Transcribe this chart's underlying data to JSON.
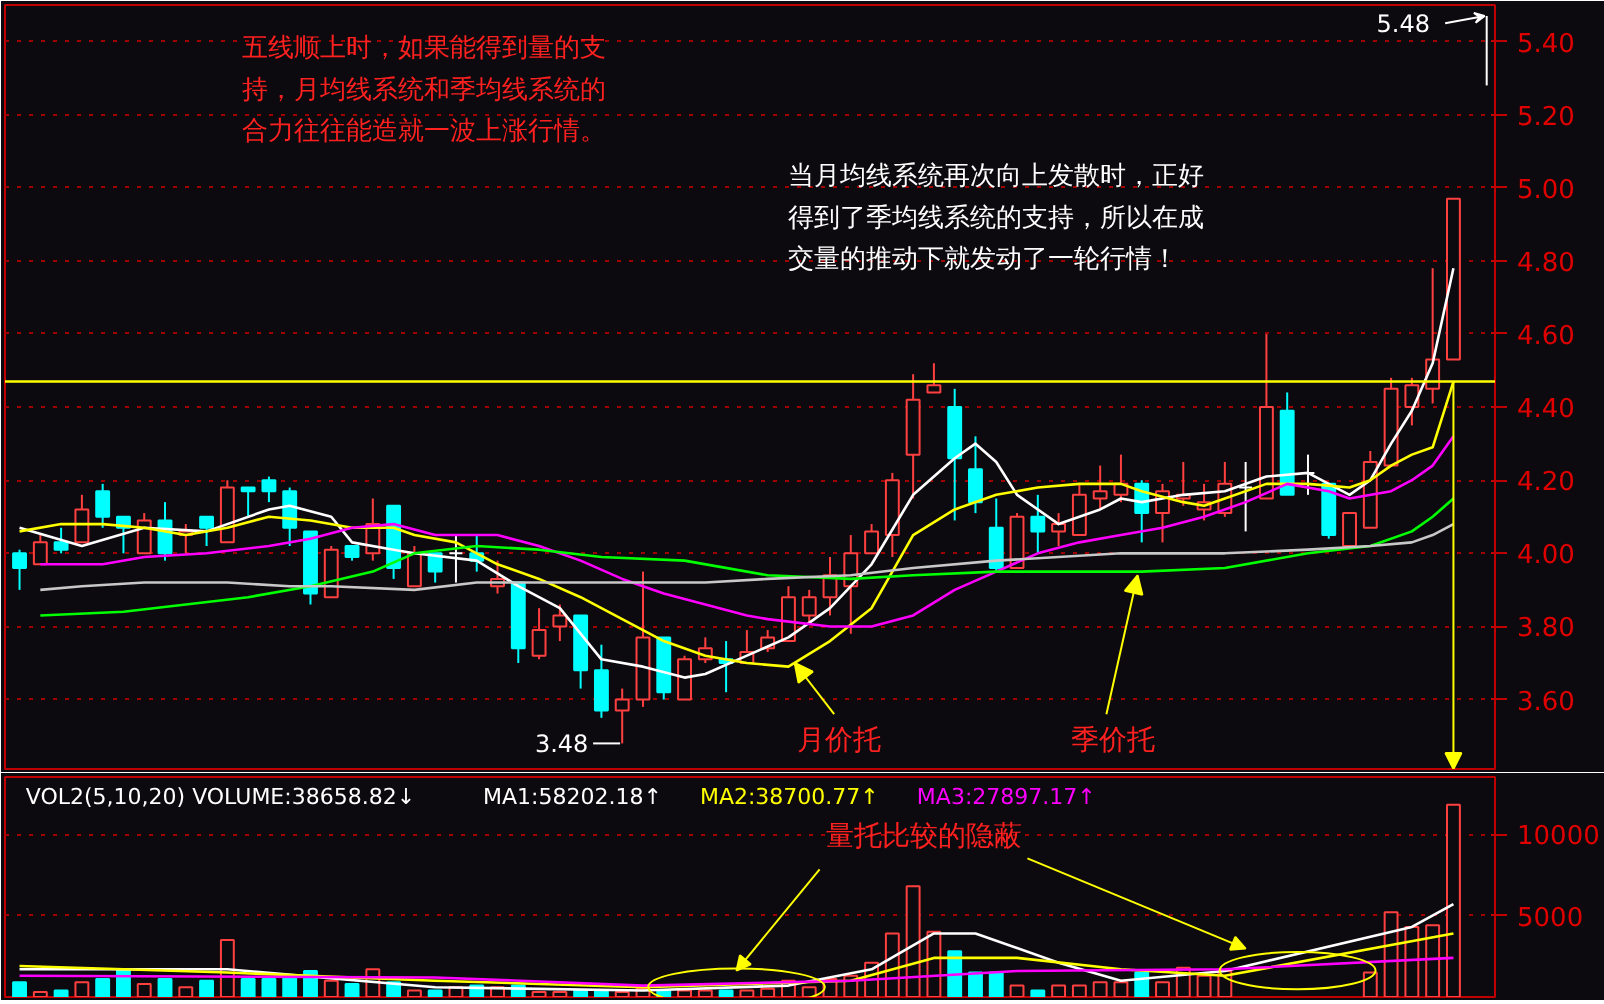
{
  "chart_data": [
    {
      "type": "candlestick",
      "categories": [
        null,
        null,
        null,
        null,
        null,
        null,
        null,
        null,
        null,
        null,
        null,
        null,
        null,
        null,
        null,
        null,
        null,
        null,
        null,
        null,
        null,
        null,
        null,
        null,
        null,
        null,
        null,
        null,
        null,
        null,
        null,
        null,
        null,
        null,
        null,
        null,
        null,
        null,
        null,
        null,
        null,
        null,
        null,
        null,
        null,
        null,
        null,
        null,
        null,
        null,
        null,
        null,
        null,
        null,
        null,
        null,
        null,
        null,
        null,
        null,
        null,
        null,
        null,
        null,
        null,
        null,
        null,
        null,
        null,
        null
      ],
      "ohlc": [
        [
          4.0,
          4.01,
          3.9,
          3.96
        ],
        [
          3.97,
          4.05,
          3.97,
          4.03
        ],
        [
          4.03,
          4.07,
          4.0,
          4.01
        ],
        [
          4.03,
          4.16,
          4.03,
          4.12
        ],
        [
          4.17,
          4.19,
          4.07,
          4.1
        ],
        [
          4.1,
          4.1,
          4.0,
          4.07
        ],
        [
          4.0,
          4.11,
          4.0,
          4.09
        ],
        [
          4.09,
          4.14,
          3.98,
          4.0
        ],
        [
          4.05,
          4.08,
          4.0,
          4.06
        ],
        [
          4.1,
          4.1,
          4.02,
          4.07
        ],
        [
          4.03,
          4.2,
          4.03,
          4.18
        ],
        [
          4.18,
          4.18,
          4.1,
          4.17
        ],
        [
          4.2,
          4.21,
          4.14,
          4.17
        ],
        [
          4.17,
          4.18,
          4.02,
          4.07
        ],
        [
          4.06,
          4.06,
          3.86,
          3.89
        ],
        [
          3.88,
          4.02,
          3.88,
          4.01
        ],
        [
          4.02,
          4.02,
          3.98,
          3.99
        ],
        [
          4.0,
          4.15,
          3.98,
          4.08
        ],
        [
          4.13,
          4.13,
          3.93,
          3.96
        ],
        [
          3.91,
          4.02,
          3.91,
          4.0
        ],
        [
          4.0,
          4.0,
          3.92,
          3.95
        ],
        [
          4.0,
          4.05,
          3.92,
          4.0
        ],
        [
          4.0,
          4.05,
          3.95,
          3.98
        ],
        [
          3.91,
          3.98,
          3.89,
          3.93
        ],
        [
          3.92,
          3.92,
          3.7,
          3.74
        ],
        [
          3.72,
          3.85,
          3.71,
          3.79
        ],
        [
          3.8,
          3.86,
          3.76,
          3.83
        ],
        [
          3.83,
          3.83,
          3.63,
          3.68
        ],
        [
          3.68,
          3.75,
          3.55,
          3.57
        ],
        [
          3.57,
          3.63,
          3.48,
          3.6
        ],
        [
          3.6,
          3.95,
          3.58,
          3.77
        ],
        [
          3.77,
          3.77,
          3.6,
          3.62
        ],
        [
          3.6,
          3.72,
          3.6,
          3.71
        ],
        [
          3.71,
          3.77,
          3.7,
          3.74
        ],
        [
          3.71,
          3.76,
          3.62,
          3.7
        ],
        [
          3.7,
          3.79,
          3.7,
          3.73
        ],
        [
          3.74,
          3.79,
          3.73,
          3.77
        ],
        [
          3.76,
          3.91,
          3.76,
          3.88
        ],
        [
          3.83,
          3.9,
          3.81,
          3.88
        ],
        [
          3.88,
          3.99,
          3.83,
          3.94
        ],
        [
          3.91,
          4.05,
          3.78,
          4.0
        ],
        [
          4.0,
          4.08,
          4.0,
          4.06
        ],
        [
          4.05,
          4.22,
          3.99,
          4.2
        ],
        [
          4.27,
          4.49,
          4.15,
          4.42
        ],
        [
          4.44,
          4.52,
          4.44,
          4.46
        ],
        [
          4.4,
          4.45,
          4.09,
          4.26
        ],
        [
          4.23,
          4.32,
          4.11,
          4.14
        ],
        [
          4.07,
          4.15,
          3.95,
          3.96
        ],
        [
          3.96,
          4.11,
          3.96,
          4.1
        ],
        [
          4.1,
          4.16,
          4.0,
          4.06
        ],
        [
          4.06,
          4.11,
          4.02,
          4.08
        ],
        [
          4.05,
          4.19,
          4.05,
          4.16
        ],
        [
          4.15,
          4.24,
          4.12,
          4.17
        ],
        [
          4.16,
          4.27,
          4.14,
          4.19
        ],
        [
          4.19,
          4.2,
          4.03,
          4.11
        ],
        [
          4.11,
          4.19,
          4.03,
          4.17
        ],
        [
          4.15,
          4.25,
          4.13,
          4.16
        ],
        [
          4.12,
          4.19,
          4.09,
          4.14
        ],
        [
          4.11,
          4.25,
          4.1,
          4.19
        ],
        [
          4.18,
          4.25,
          4.06,
          4.18
        ],
        [
          4.15,
          4.6,
          4.15,
          4.4
        ],
        [
          4.39,
          4.44,
          4.16,
          4.16
        ],
        [
          4.22,
          4.27,
          4.16,
          4.22
        ],
        [
          4.19,
          4.19,
          4.04,
          4.05
        ],
        [
          4.02,
          4.11,
          4.02,
          4.11
        ],
        [
          4.07,
          4.28,
          4.07,
          4.25
        ],
        [
          4.24,
          4.48,
          4.24,
          4.45
        ],
        [
          4.4,
          4.48,
          4.35,
          4.46
        ],
        [
          4.45,
          4.78,
          4.41,
          4.53
        ],
        [
          4.53,
          4.97,
          4.53,
          4.97
        ]
      ],
      "colors": [
        "#00ffff",
        "#ff4040",
        "#00ffff",
        "#ff4040",
        "#00ffff",
        "#00ffff",
        "#ff4040",
        "#00ffff",
        "#ff4040",
        "#00ffff",
        "#ff4040",
        "#00ffff",
        "#00ffff",
        "#00ffff",
        "#00ffff",
        "#ff4040",
        "#00ffff",
        "#ff4040",
        "#00ffff",
        "#ff4040",
        "#00ffff",
        "#ffffff",
        "#00ffff",
        "#ff4040",
        "#00ffff",
        "#ff4040",
        "#ff4040",
        "#00ffff",
        "#00ffff",
        "#ff4040",
        "#ff4040",
        "#00ffff",
        "#ff4040",
        "#ff4040",
        "#00ffff",
        "#ff4040",
        "#ff4040",
        "#ff4040",
        "#ff4040",
        "#ff4040",
        "#ff4040",
        "#ff4040",
        "#ff4040",
        "#ff4040",
        "#ff4040",
        "#00ffff",
        "#00ffff",
        "#00ffff",
        "#ff4040",
        "#00ffff",
        "#ff4040",
        "#ff4040",
        "#ff4040",
        "#ff4040",
        "#00ffff",
        "#ff4040",
        "#ff4040",
        "#ff4040",
        "#ff4040",
        "#ffffff",
        "#ff4040",
        "#00ffff",
        "#ffffff",
        "#00ffff",
        "#ff4040",
        "#ff4040",
        "#ff4040",
        "#ff4040",
        "#ff4040",
        "#ff4040"
      ],
      "series": [
        {
          "type": "line",
          "color": "#ffffff",
          "values": [
            4.07,
            null,
            null,
            4.02,
            null,
            null,
            4.07,
            null,
            null,
            4.06,
            null,
            null,
            4.12,
            4.13,
            null,
            4.1,
            4.03,
            null,
            4.01,
            4.0,
            null,
            null,
            3.98,
            null,
            3.91,
            null,
            3.85,
            null,
            3.71,
            null,
            3.69,
            null,
            3.66,
            3.67,
            null,
            3.72,
            null,
            3.77,
            null,
            3.85,
            null,
            3.97,
            null,
            4.16,
            null,
            4.26,
            4.3,
            4.25,
            4.16,
            null,
            4.08,
            null,
            4.12,
            4.15,
            4.14,
            null,
            4.16,
            null,
            4.17,
            null,
            4.21,
            null,
            4.22,
            null,
            4.16,
            4.2,
            4.3,
            4.39,
            4.52,
            4.78
          ]
        },
        {
          "type": "line",
          "color": "#ffff00",
          "values": [
            4.06,
            null,
            4.08,
            null,
            4.08,
            null,
            4.07,
            null,
            4.05,
            null,
            4.07,
            null,
            4.1,
            null,
            4.09,
            null,
            4.07,
            null,
            4.07,
            4.05,
            null,
            4.03,
            null,
            3.97,
            null,
            3.93,
            null,
            3.88,
            null,
            3.82,
            null,
            3.76,
            null,
            3.72,
            null,
            3.7,
            null,
            3.69,
            null,
            3.76,
            null,
            3.85,
            3.95,
            4.05,
            null,
            4.12,
            null,
            4.16,
            null,
            4.18,
            null,
            4.19,
            null,
            4.19,
            4.17,
            null,
            4.14,
            4.13,
            4.15,
            null,
            4.19,
            null,
            4.19,
            null,
            4.18,
            4.2,
            4.24,
            4.27,
            4.29,
            4.47
          ]
        },
        {
          "type": "line",
          "color": "#ff00ff",
          "values": [
            null,
            3.97,
            null,
            null,
            3.97,
            null,
            3.99,
            null,
            null,
            4.0,
            null,
            null,
            4.02,
            null,
            4.04,
            null,
            4.07,
            null,
            4.08,
            null,
            4.05,
            null,
            null,
            4.05,
            null,
            4.02,
            null,
            3.98,
            null,
            3.93,
            null,
            3.89,
            null,
            3.86,
            null,
            3.83,
            3.82,
            null,
            null,
            3.8,
            null,
            3.8,
            null,
            3.83,
            null,
            3.9,
            null,
            3.95,
            null,
            4.0,
            null,
            4.03,
            null,
            4.05,
            null,
            4.07,
            null,
            4.1,
            null,
            4.14,
            null,
            4.19,
            null,
            4.17,
            4.15,
            null,
            4.17,
            4.2,
            4.24,
            4.32
          ]
        },
        {
          "type": "line",
          "color": "#00ff00",
          "values": [
            null,
            3.83,
            null,
            null,
            null,
            3.84,
            null,
            null,
            3.86,
            null,
            null,
            3.88,
            null,
            null,
            3.91,
            null,
            null,
            3.95,
            null,
            4.0,
            null,
            null,
            4.02,
            null,
            null,
            4.01,
            null,
            null,
            3.99,
            null,
            null,
            null,
            3.98,
            null,
            null,
            null,
            3.94,
            null,
            null,
            null,
            3.93,
            null,
            null,
            3.94,
            null,
            null,
            null,
            3.95,
            null,
            null,
            null,
            3.95,
            null,
            null,
            3.95,
            null,
            null,
            null,
            3.96,
            null,
            null,
            null,
            4.0,
            null,
            null,
            4.02,
            null,
            4.06,
            4.1,
            4.15
          ]
        },
        {
          "type": "line",
          "color": "#c8c8c8",
          "values": [
            null,
            3.9,
            null,
            3.91,
            null,
            null,
            3.92,
            null,
            null,
            null,
            3.92,
            null,
            null,
            3.91,
            null,
            3.91,
            null,
            null,
            null,
            3.9,
            null,
            null,
            3.92,
            null,
            null,
            3.92,
            null,
            null,
            null,
            null,
            3.92,
            null,
            null,
            3.92,
            null,
            null,
            3.93,
            null,
            null,
            null,
            3.94,
            null,
            null,
            3.96,
            null,
            null,
            null,
            3.98,
            null,
            null,
            3.99,
            null,
            null,
            4.0,
            null,
            4.0,
            null,
            null,
            4.0,
            null,
            null,
            null,
            4.01,
            null,
            null,
            4.02,
            null,
            4.03,
            4.05,
            4.08
          ]
        }
      ],
      "ylim": [
        3.41,
        5.5
      ],
      "yticks": [
        {
          "value": 3.6,
          "label": "3.60"
        },
        {
          "value": 3.8,
          "label": "3.80"
        },
        {
          "value": 4.0,
          "label": "4.00"
        },
        {
          "value": 4.2,
          "label": "4.20"
        },
        {
          "value": 4.4,
          "label": "4.40"
        },
        {
          "value": 4.6,
          "label": "4.60"
        },
        {
          "value": 4.8,
          "label": "4.80"
        },
        {
          "value": 5.0,
          "label": "5.00"
        },
        {
          "value": 5.2,
          "label": "5.20"
        },
        {
          "value": 5.4,
          "label": "5.40"
        }
      ],
      "ref_lines": [
        {
          "axis": "y",
          "value": 4.47,
          "color": "#ffff00"
        }
      ],
      "annotations": [
        "五线顺上时，如果能得到量的支持，月均线系统和季均线系统的合力往往能造就一波上涨行情。",
        "当月均线系统再次向上发散时，正好得到了季均线系统的支持，所以在成交量的推动下就发动了一轮行情！",
        "月价托",
        "季价托",
        "3.48",
        "5.48"
      ],
      "grid": "y",
      "tick_labels": "y"
    },
    {
      "type": "bar",
      "title": "VOL2(5,10,20) VOLUME:38658.82↓",
      "categories": [
        null,
        null,
        null,
        null,
        null,
        null,
        null,
        null,
        null,
        null,
        null,
        null,
        null,
        null,
        null,
        null,
        null,
        null,
        null,
        null,
        null,
        null,
        null,
        null,
        null,
        null,
        null,
        null,
        null,
        null,
        null,
        null,
        null,
        null,
        null,
        null,
        null,
        null,
        null,
        null,
        null,
        null,
        null,
        null,
        null,
        null,
        null,
        null,
        null,
        null,
        null,
        null,
        null,
        null,
        null,
        null,
        null,
        null,
        null,
        null,
        null,
        null,
        null,
        null,
        null,
        null,
        null,
        null,
        null,
        null
      ],
      "values": [
        900,
        300,
        400,
        900,
        1100,
        1700,
        800,
        1100,
        600,
        1000,
        3500,
        1100,
        1100,
        1200,
        1600,
        1000,
        800,
        1700,
        900,
        400,
        400,
        600,
        700,
        600,
        700,
        300,
        300,
        400,
        400,
        300,
        500,
        400,
        400,
        400,
        400,
        400,
        500,
        1000,
        600,
        1100,
        1300,
        2100,
        3900,
        6800,
        4000,
        2800,
        1500,
        1500,
        700,
        400,
        700,
        700,
        900,
        900,
        1500,
        900,
        1800,
        1300,
        1600,
        null,
        null,
        null,
        null,
        null,
        null,
        1500,
        5200,
        4300,
        4400,
        11800
      ],
      "colors": [
        "#00ffff",
        "#ff4040",
        "#00ffff",
        "#ff4040",
        "#00ffff",
        "#00ffff",
        "#ff4040",
        "#00ffff",
        "#ff4040",
        "#00ffff",
        "#ff4040",
        "#00ffff",
        "#00ffff",
        "#00ffff",
        "#00ffff",
        "#ff4040",
        "#00ffff",
        "#ff4040",
        "#00ffff",
        "#ff4040",
        "#00ffff",
        "#ff4040",
        "#00ffff",
        "#ff4040",
        "#00ffff",
        "#ff4040",
        "#ff4040",
        "#00ffff",
        "#00ffff",
        "#ff4040",
        "#ff4040",
        "#00ffff",
        "#ff4040",
        "#ff4040",
        "#00ffff",
        "#ff4040",
        "#ff4040",
        "#ff4040",
        "#ff4040",
        "#ff4040",
        "#ff4040",
        "#ff4040",
        "#ff4040",
        "#ff4040",
        "#ff4040",
        "#00ffff",
        "#00ffff",
        "#00ffff",
        "#ff4040",
        "#00ffff",
        "#ff4040",
        "#ff4040",
        "#ff4040",
        "#ff4040",
        "#00ffff",
        "#ff4040",
        "#ff4040",
        "#ff4040",
        "#ff4040",
        "#ff4040",
        "#ff4040",
        "#00ffff",
        "#ff4040",
        "#00ffff",
        "#ff4040",
        "#ff4040",
        "#ff4040",
        "#ff4040",
        "#ff4040",
        "#ff4040"
      ],
      "series": [
        {
          "type": "line",
          "name": "MA1:58202.18↑",
          "color": "#ffffff",
          "values": [
            1700,
            null,
            null,
            null,
            null,
            null,
            null,
            null,
            null,
            null,
            1700,
            null,
            null,
            null,
            null,
            null,
            null,
            null,
            null,
            null,
            600,
            null,
            null,
            null,
            null,
            null,
            null,
            null,
            null,
            null,
            400,
            null,
            null,
            null,
            null,
            null,
            null,
            700,
            null,
            null,
            null,
            1700,
            null,
            null,
            3900,
            null,
            3900,
            null,
            null,
            null,
            2100,
            null,
            null,
            1000,
            null,
            null,
            null,
            null,
            1600,
            null,
            null,
            null,
            null,
            null,
            null,
            null,
            null,
            4300,
            null,
            5700
          ]
        },
        {
          "type": "line",
          "name": "MA2:38700.77↑",
          "color": "#ffff00",
          "values": [
            1900,
            null,
            null,
            null,
            null,
            null,
            null,
            null,
            null,
            null,
            1500,
            null,
            null,
            null,
            null,
            null,
            null,
            null,
            null,
            null,
            1000,
            null,
            null,
            null,
            null,
            null,
            null,
            null,
            null,
            null,
            600,
            null,
            null,
            null,
            null,
            null,
            null,
            null,
            null,
            null,
            1000,
            null,
            null,
            null,
            2400,
            null,
            null,
            null,
            2400,
            null,
            null,
            null,
            null,
            1700,
            null,
            null,
            null,
            null,
            1300,
            null,
            null,
            null,
            null,
            null,
            null,
            null,
            null,
            null,
            null,
            3900
          ]
        },
        {
          "type": "line",
          "name": "MA3:27897.17↑",
          "color": "#ff00ff",
          "values": [
            1300,
            null,
            null,
            null,
            null,
            null,
            null,
            null,
            null,
            null,
            null,
            null,
            null,
            null,
            null,
            null,
            null,
            null,
            null,
            null,
            1200,
            null,
            null,
            null,
            null,
            null,
            null,
            null,
            null,
            null,
            700,
            null,
            null,
            null,
            null,
            null,
            null,
            null,
            null,
            null,
            1000,
            null,
            null,
            null,
            null,
            null,
            null,
            null,
            1600,
            null,
            null,
            null,
            null,
            null,
            null,
            null,
            null,
            null,
            1700,
            null,
            null,
            null,
            null,
            null,
            null,
            null,
            null,
            null,
            null,
            2400
          ]
        }
      ],
      "ylim": [
        0,
        13500
      ],
      "yticks": [
        5000,
        10000
      ],
      "annotations": [
        "量托比较的隐蔽"
      ],
      "legend": "top left",
      "grid": "y",
      "tick_labels": "y"
    }
  ]
}
